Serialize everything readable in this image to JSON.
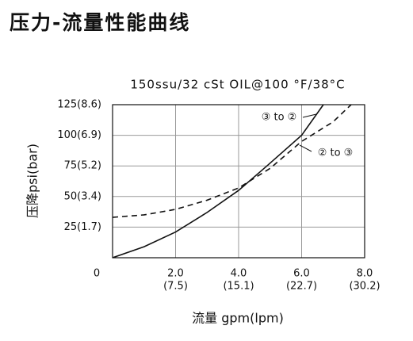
{
  "chart_data": {
    "type": "line",
    "title": "压力-流量性能曲线",
    "subtitle": "150ssu/32 cSt OIL@100 °F/38°C",
    "x_label": "流量 gpm(lpm)",
    "y_label": "压降psi(bar)",
    "xlim": [
      0,
      8
    ],
    "ylim": [
      0,
      125
    ],
    "xticks": [
      {
        "value": 0,
        "label": "0"
      },
      {
        "value": 2,
        "label": "2.0"
      },
      {
        "value": 4,
        "label": "4.0"
      },
      {
        "value": 6,
        "label": "6.0"
      },
      {
        "value": 8,
        "label": "8.0"
      }
    ],
    "xticks_lpm": [
      null,
      "(7.5)",
      "(15.1)",
      "(22.7)",
      "(30.2)"
    ],
    "yticks": [
      {
        "value": 25,
        "label": "25(1.7)"
      },
      {
        "value": 50,
        "label": "50(3.4)"
      },
      {
        "value": 75,
        "label": "75(5.2)"
      },
      {
        "value": 100,
        "label": "100(6.9)"
      },
      {
        "value": 125,
        "label": "125(8.6)"
      }
    ],
    "grid": true,
    "series": [
      {
        "name": "③ to ②",
        "color": "#111111",
        "dash": false,
        "x": [
          0,
          1,
          2,
          3,
          4,
          4.9,
          6,
          6.69
        ],
        "values": [
          0,
          9,
          21,
          37,
          55,
          75,
          100,
          125
        ]
      },
      {
        "name": "② to ③",
        "color": "#111111",
        "dash": true,
        "x": [
          0,
          1,
          2,
          3,
          4,
          5,
          6,
          7,
          7.57
        ],
        "values": [
          33,
          35,
          39.5,
          47,
          57,
          73,
          95,
          111,
          125
        ]
      }
    ]
  }
}
